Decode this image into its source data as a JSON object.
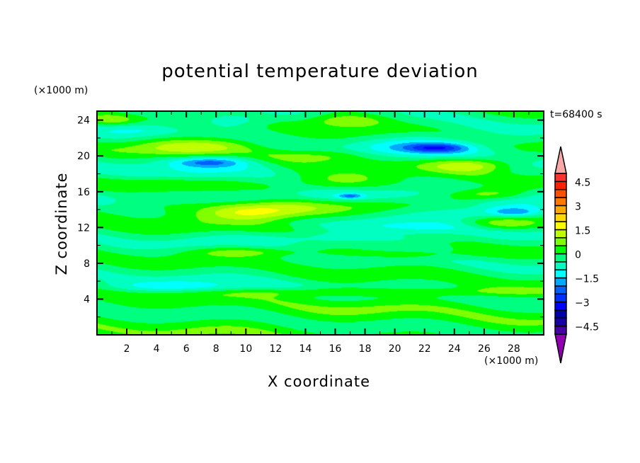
{
  "chart_data": {
    "type": "heatmap",
    "subtype": "filled-contour",
    "title": "potential temperature deviation",
    "xlabel": "X coordinate",
    "ylabel": "Z coordinate",
    "x_unit": "(×1000 m)",
    "z_unit": "(×1000 m)",
    "time_label": "t=68400 s",
    "xlim": [
      0,
      30
    ],
    "zlim": [
      0,
      25
    ],
    "x_ticks": [
      2,
      4,
      6,
      8,
      10,
      12,
      14,
      16,
      18,
      20,
      22,
      24,
      26,
      28
    ],
    "z_ticks": [
      4,
      8,
      12,
      16,
      20,
      24
    ],
    "colorbar": {
      "levels_min": -5,
      "levels_max": 5,
      "level_step": 0.5,
      "tick_labels": [
        "4.5",
        "3",
        "1.5",
        "0",
        "−1.5",
        "−3",
        "−4.5"
      ],
      "tick_values": [
        4.5,
        3,
        1.5,
        0,
        -1.5,
        -3,
        -4.5
      ],
      "over_color": "#f8a8a8",
      "under_color": "#9000b0",
      "colors_low_to_high": [
        "#4800a8",
        "#1800a8",
        "#0000a8",
        "#0000ff",
        "#0030ff",
        "#0060ff",
        "#00a8ff",
        "#00ffff",
        "#00ffc0",
        "#00ff80",
        "#00ff00",
        "#80ff00",
        "#c0ff00",
        "#ffff00",
        "#ffd800",
        "#ffa800",
        "#ff7800",
        "#ff5000",
        "#ff2000",
        "#ff3030"
      ]
    },
    "field_base": {
      "offset": -0.2,
      "wave_amplitude": 0.45
    },
    "anomalies": [
      {
        "x": 6,
        "z": 21,
        "value": 2.0,
        "sx": 3,
        "sz": 0.8
      },
      {
        "x": 7,
        "z": 19.5,
        "value": -1.2,
        "sx": 3.5,
        "sz": 0.9
      },
      {
        "x": 7.5,
        "z": 19.3,
        "value": -1.2,
        "sx": 1.6,
        "sz": 0.35
      },
      {
        "x": 11,
        "z": 13.8,
        "value": 1.6,
        "sx": 2.5,
        "sz": 0.7
      },
      {
        "x": 9,
        "z": 14,
        "value": 0.8,
        "sx": 6,
        "sz": 0.9
      },
      {
        "x": 15,
        "z": 15.5,
        "value": -0.8,
        "sx": 12,
        "sz": 0.6
      },
      {
        "x": 22,
        "z": 21,
        "value": -1.1,
        "sx": 3.5,
        "sz": 1.0
      },
      {
        "x": 22.8,
        "z": 20.9,
        "value": -1.6,
        "sx": 1.4,
        "sz": 0.35
      },
      {
        "x": 25,
        "z": 19,
        "value": 1.6,
        "sx": 2,
        "sz": 0.6
      },
      {
        "x": 17,
        "z": 24,
        "value": 1.5,
        "sx": 2,
        "sz": 0.6
      },
      {
        "x": 26,
        "z": 15.7,
        "value": 1.7,
        "sx": 2,
        "sz": 0.5
      },
      {
        "x": 27,
        "z": 13.8,
        "value": -1.2,
        "sx": 3,
        "sz": 0.6
      },
      {
        "x": 28,
        "z": 13.7,
        "value": -1.0,
        "sx": 1,
        "sz": 0.3
      },
      {
        "x": 17,
        "z": 15.5,
        "value": -1.4,
        "sx": 0.6,
        "sz": 0.2
      },
      {
        "x": 17,
        "z": 17,
        "value": 1.0,
        "sx": 3.5,
        "sz": 0.7
      },
      {
        "x": 15,
        "z": 20,
        "value": 1.2,
        "sx": 3,
        "sz": 0.6
      },
      {
        "x": 27,
        "z": 12.4,
        "value": 1.2,
        "sx": 2,
        "sz": 0.5
      },
      {
        "x": 22,
        "z": 12,
        "value": -0.9,
        "sx": 3,
        "sz": 0.5
      },
      {
        "x": 19,
        "z": 4.8,
        "value": 0.9,
        "sx": 9,
        "sz": 0.35
      },
      {
        "x": 6,
        "z": 5.3,
        "value": -1.1,
        "sx": 4,
        "sz": 0.5
      },
      {
        "x": 15,
        "z": 1.5,
        "value": 0.4,
        "sx": 20,
        "sz": 2.5
      },
      {
        "x": 3,
        "z": 23,
        "value": -1.0,
        "sx": 2,
        "sz": 0.6
      },
      {
        "x": 9,
        "z": 24,
        "value": -0.9,
        "sx": 2,
        "sz": 0.6
      },
      {
        "x": 10,
        "z": 9.3,
        "value": 0.9,
        "sx": 3,
        "sz": 0.4
      },
      {
        "x": 20,
        "z": 9,
        "value": 0.8,
        "sx": 4,
        "sz": 0.4
      },
      {
        "x": 17,
        "z": 10.8,
        "value": -0.9,
        "sx": 5,
        "sz": 0.5
      },
      {
        "x": 4,
        "z": 17,
        "value": 0.7,
        "sx": 3,
        "sz": 0.5
      },
      {
        "x": 1,
        "z": 24,
        "value": 0.9,
        "sx": 1,
        "sz": 0.4
      }
    ]
  }
}
